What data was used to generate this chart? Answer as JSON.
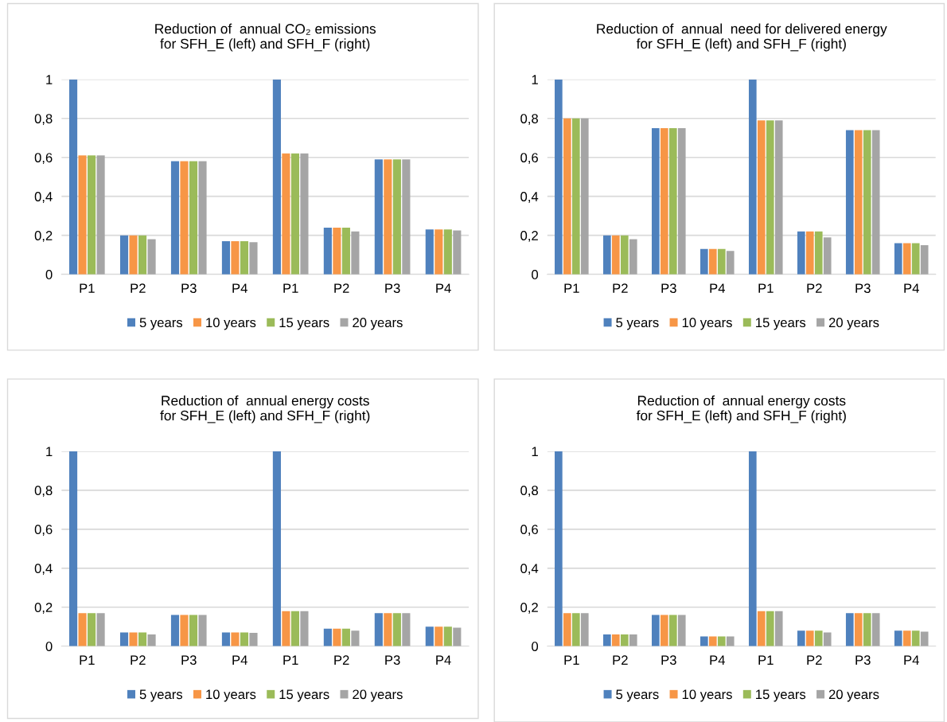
{
  "chart_data": [
    {
      "type": "bar",
      "title": "Reduction of  annual CO₂ emissions\nfor SFH_E (left) and SFH_F (right)",
      "categories": [
        "P1",
        "P2",
        "P3",
        "P4",
        "P1",
        "P2",
        "P3",
        "P4"
      ],
      "series": [
        {
          "name": "5 years",
          "color": "#4f81bd",
          "values": [
            1,
            0.2,
            0.58,
            0.17,
            1,
            0.24,
            0.59,
            0.23
          ]
        },
        {
          "name": "10 years",
          "color": "#f79646",
          "values": [
            0.61,
            0.2,
            0.58,
            0.17,
            0.62,
            0.24,
            0.59,
            0.23
          ]
        },
        {
          "name": "15 years",
          "color": "#9bbb59",
          "values": [
            0.61,
            0.2,
            0.58,
            0.17,
            0.62,
            0.24,
            0.59,
            0.23
          ]
        },
        {
          "name": "20 years",
          "color": "#a5a5a5",
          "values": [
            0.61,
            0.18,
            0.58,
            0.165,
            0.62,
            0.22,
            0.59,
            0.225
          ]
        }
      ],
      "ylim": [
        0,
        1
      ],
      "yticks": [
        0,
        {
          "value": 0.2,
          "label": "0,2"
        },
        {
          "value": 0.4,
          "label": "0,4"
        },
        {
          "value": 0.6,
          "label": "0,6"
        },
        {
          "value": 0.8,
          "label": "0,8"
        },
        1
      ],
      "grid": "y",
      "legend": "bottom"
    },
    {
      "type": "bar",
      "title": "Reduction of  annual  need for delivered energy\nfor SFH_E (left) and SFH_F (right)",
      "categories": [
        "P1",
        "P2",
        "P3",
        "P4",
        "P1",
        "P2",
        "P3",
        "P4"
      ],
      "series": [
        {
          "name": "5 years",
          "color": "#4f81bd",
          "values": [
            1,
            0.2,
            0.75,
            0.13,
            1,
            0.22,
            0.74,
            0.16
          ]
        },
        {
          "name": "10 years",
          "color": "#f79646",
          "values": [
            0.8,
            0.2,
            0.75,
            0.13,
            0.79,
            0.22,
            0.74,
            0.16
          ]
        },
        {
          "name": "15 years",
          "color": "#9bbb59",
          "values": [
            0.8,
            0.2,
            0.75,
            0.13,
            0.79,
            0.22,
            0.74,
            0.16
          ]
        },
        {
          "name": "20 years",
          "color": "#a5a5a5",
          "values": [
            0.8,
            0.18,
            0.75,
            0.12,
            0.79,
            0.19,
            0.74,
            0.15
          ]
        }
      ],
      "ylim": [
        0,
        1
      ],
      "yticks": [
        0,
        {
          "value": 0.2,
          "label": "0,2"
        },
        {
          "value": 0.4,
          "label": "0,4"
        },
        {
          "value": 0.6,
          "label": "0,6"
        },
        {
          "value": 0.8,
          "label": "0,8"
        },
        1
      ],
      "grid": "y",
      "legend": "bottom"
    },
    {
      "type": "bar",
      "title": "Reduction of  annual energy costs\nfor SFH_E (left) and SFH_F (right)",
      "categories": [
        "P1",
        "P2",
        "P3",
        "P4",
        "P1",
        "P2",
        "P3",
        "P4"
      ],
      "series": [
        {
          "name": "5 years",
          "color": "#4f81bd",
          "values": [
            1,
            0.07,
            0.16,
            0.07,
            1,
            0.09,
            0.17,
            0.1
          ]
        },
        {
          "name": "10 years",
          "color": "#f79646",
          "values": [
            0.17,
            0.07,
            0.16,
            0.07,
            0.18,
            0.09,
            0.17,
            0.1
          ]
        },
        {
          "name": "15 years",
          "color": "#9bbb59",
          "values": [
            0.17,
            0.07,
            0.16,
            0.07,
            0.18,
            0.09,
            0.17,
            0.1
          ]
        },
        {
          "name": "20 years",
          "color": "#a5a5a5",
          "values": [
            0.17,
            0.06,
            0.16,
            0.068,
            0.18,
            0.08,
            0.17,
            0.095
          ]
        }
      ],
      "ylim": [
        0,
        1
      ],
      "yticks": [
        0,
        {
          "value": 0.2,
          "label": "0,2"
        },
        {
          "value": 0.4,
          "label": "0,4"
        },
        {
          "value": 0.6,
          "label": "0,6"
        },
        {
          "value": 0.8,
          "label": "0,8"
        },
        1
      ],
      "grid": "y",
      "legend": "bottom"
    },
    {
      "type": "bar",
      "title": "Reduction of  annual energy costs\nfor SFH_E (left) and SFH_F (right)",
      "categories": [
        "P1",
        "P2",
        "P3",
        "P4",
        "P1",
        "P2",
        "P3",
        "P4"
      ],
      "series": [
        {
          "name": "5 years",
          "color": "#4f81bd",
          "values": [
            1,
            0.06,
            0.16,
            0.05,
            1,
            0.08,
            0.17,
            0.08
          ]
        },
        {
          "name": "10 years",
          "color": "#f79646",
          "values": [
            0.17,
            0.06,
            0.16,
            0.05,
            0.18,
            0.08,
            0.17,
            0.08
          ]
        },
        {
          "name": "15 years",
          "color": "#9bbb59",
          "values": [
            0.17,
            0.06,
            0.16,
            0.05,
            0.18,
            0.08,
            0.17,
            0.08
          ]
        },
        {
          "name": "20 years",
          "color": "#a5a5a5",
          "values": [
            0.17,
            0.06,
            0.16,
            0.05,
            0.18,
            0.07,
            0.17,
            0.075
          ]
        }
      ],
      "ylim": [
        0,
        1
      ],
      "yticks": [
        0,
        {
          "value": 0.2,
          "label": "0,2"
        },
        {
          "value": 0.4,
          "label": "0,4"
        },
        {
          "value": 0.6,
          "label": "0,6"
        },
        {
          "value": 0.8,
          "label": "0,8"
        },
        1
      ],
      "grid": "y",
      "legend": "bottom"
    }
  ]
}
